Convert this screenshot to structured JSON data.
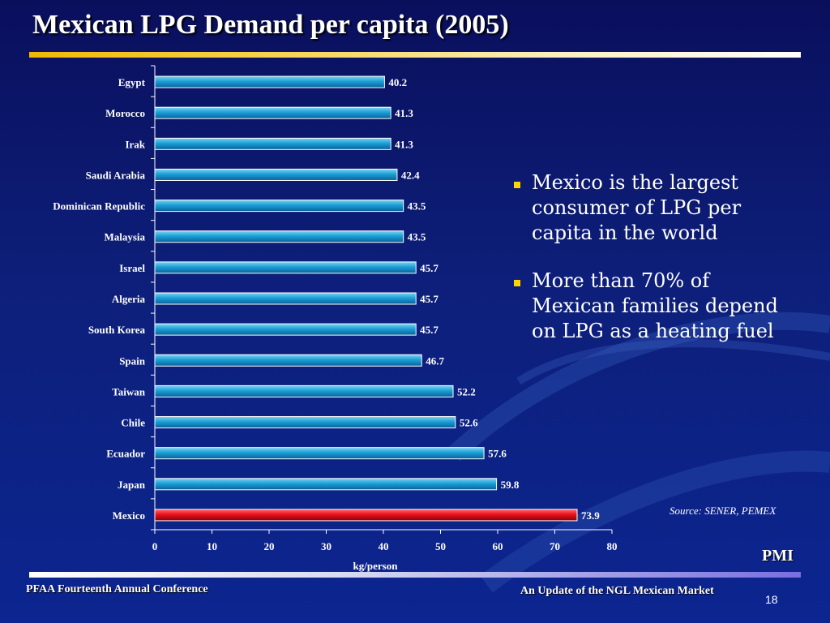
{
  "slide": {
    "title": "Mexican LPG Demand per capita (2005)",
    "source": "Source: SENER, PEMEX",
    "logo_text": "PMI",
    "footer_left": "PFAA Fourteenth Annual Conference",
    "footer_right": "An Update of the NGL Mexican Market",
    "page_number": "18"
  },
  "bullets": [
    "Mexico is the largest consumer of LPG per capita in the world",
    "More than 70% of Mexican families depend on LPG as a heating fuel"
  ],
  "chart_data": {
    "type": "bar",
    "orientation": "horizontal",
    "title": "",
    "xlabel": "kg/person",
    "ylabel": "",
    "xlim": [
      0,
      80
    ],
    "xticks": [
      0,
      10,
      20,
      30,
      40,
      50,
      60,
      70,
      80
    ],
    "grid": false,
    "categories": [
      "Egypt",
      "Morocco",
      "Irak",
      "Saudi Arabia",
      "Dominican Republic",
      "Malaysia",
      "Israel",
      "Algeria",
      "South Korea",
      "Spain",
      "Taiwan",
      "Chile",
      "Ecuador",
      "Japan",
      "Mexico"
    ],
    "values": [
      40.2,
      41.3,
      41.3,
      42.4,
      43.5,
      43.5,
      45.7,
      45.7,
      45.7,
      46.7,
      52.2,
      52.6,
      57.6,
      59.8,
      73.9
    ],
    "value_labels": [
      "40.2",
      "41.3",
      "41.3",
      "42.4",
      "43.5",
      "43.5",
      "45.7",
      "45.7",
      "45.7",
      "46.7",
      "52.2",
      "52.6",
      "57.6",
      "59.8",
      "73.9"
    ],
    "colors": {
      "default": "#1a9ad0",
      "highlight": "#e8101c",
      "highlight_category": "Mexico",
      "text": "#ffffff",
      "axis": "#ffffff"
    }
  }
}
